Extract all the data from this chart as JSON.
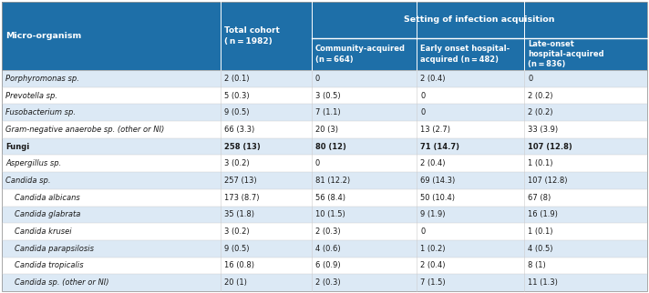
{
  "header_bg": "#1e6fa8",
  "header_text_color": "#ffffff",
  "row_colors": [
    "#dce9f5",
    "#ffffff",
    "#dce9f5",
    "#ffffff",
    "#dce9f5",
    "#ffffff",
    "#dce9f5",
    "#ffffff",
    "#dce9f5",
    "#ffffff",
    "#dce9f5",
    "#ffffff",
    "#dce9f5"
  ],
  "setting_header": "Setting of infection acquisition",
  "col1_header": "Micro-organism",
  "col2_header": "Total cohort\n(n = 1982)",
  "sub_headers": [
    "Community-acquired\n(n = 664)",
    "Early onset hospital-\nacquired (n = 482)",
    "Late-onset\nhospital-acquired\n(n = 836)"
  ],
  "rows": [
    [
      "Porphyromonas sp.",
      "2 (0.1)",
      "0",
      "2 (0.4)",
      "0"
    ],
    [
      "Prevotella sp.",
      "5 (0.3)",
      "3 (0.5)",
      "0",
      "2 (0.2)"
    ],
    [
      "Fusobacterium sp.",
      "9 (0.5)",
      "7 (1.1)",
      "0",
      "2 (0.2)"
    ],
    [
      "Gram-negative anaerobe sp. (other or NI)",
      "66 (3.3)",
      "20 (3)",
      "13 (2.7)",
      "33 (3.9)"
    ],
    [
      "Fungi",
      "258 (13)",
      "80 (12)",
      "71 (14.7)",
      "107 (12.8)"
    ],
    [
      "Aspergillus sp.",
      "3 (0.2)",
      "0",
      "2 (0.4)",
      "1 (0.1)"
    ],
    [
      "Candida sp.",
      "257 (13)",
      "81 (12.2)",
      "69 (14.3)",
      "107 (12.8)"
    ],
    [
      "  Candida albicans",
      "173 (8.7)",
      "56 (8.4)",
      "50 (10.4)",
      "67 (8)"
    ],
    [
      "  Candida glabrata",
      "35 (1.8)",
      "10 (1.5)",
      "9 (1.9)",
      "16 (1.9)"
    ],
    [
      "  Candida krusei",
      "3 (0.2)",
      "2 (0.3)",
      "0",
      "1 (0.1)"
    ],
    [
      "  Candida parapsilosis",
      "9 (0.5)",
      "4 (0.6)",
      "1 (0.2)",
      "4 (0.5)"
    ],
    [
      "  Candida tropicalis",
      "16 (0.8)",
      "6 (0.9)",
      "2 (0.4)",
      "8 (1)"
    ],
    [
      "  Candida sp. (other or NI)",
      "20 (1)",
      "2 (0.3)",
      "7 (1.5)",
      "11 (1.3)"
    ]
  ],
  "italic_rows": [
    0,
    1,
    2,
    3,
    5,
    6,
    7,
    8,
    9,
    10,
    11,
    12
  ],
  "bold_rows": [
    4
  ],
  "figsize": [
    7.12,
    3.22
  ],
  "dpi": 100
}
